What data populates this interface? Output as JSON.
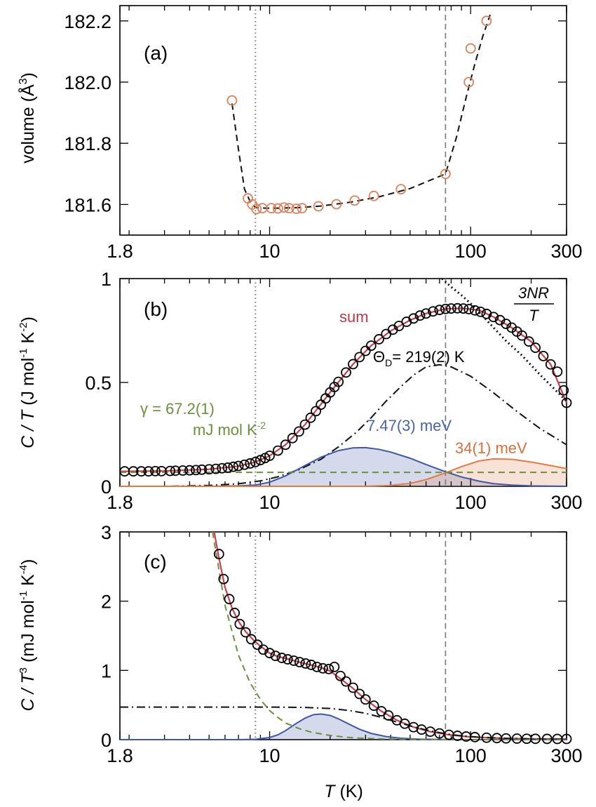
{
  "chart_data": [
    {
      "type": "scatter",
      "panel_label": "(a)",
      "xscale": "log",
      "xlim": [
        1.8,
        300
      ],
      "ylim": [
        181.5,
        182.25
      ],
      "ylabel": "volume (Å³)",
      "ylabel_parts": {
        "pre": "volume (",
        "unit": "Å",
        "exp": "3",
        "post": ")"
      },
      "xticks": [
        {
          "v": 1.8,
          "label": "1.8"
        },
        {
          "v": 10,
          "label": "10"
        },
        {
          "v": 100,
          "label": "100"
        },
        {
          "v": 300,
          "label": "300"
        }
      ],
      "yticks": [
        {
          "v": 181.6,
          "label": "181.6"
        },
        {
          "v": 181.8,
          "label": "181.8"
        },
        {
          "v": 182.0,
          "label": "182.0"
        },
        {
          "v": 182.2,
          "label": "182.2"
        }
      ],
      "vlines": {
        "dotted": 8.5,
        "dashed": 75
      },
      "series": [
        {
          "name": "volume",
          "style": "open-circle",
          "color": "#d9815a",
          "x": [
            6.5,
            7.8,
            8.2,
            8.6,
            9.2,
            10.2,
            11,
            11.8,
            12.5,
            13.6,
            14.5,
            17.5,
            21.5,
            26.5,
            33,
            45,
            75,
            98,
            100,
            120
          ],
          "y": [
            181.94,
            181.62,
            181.6,
            181.585,
            181.588,
            181.588,
            181.587,
            181.59,
            181.588,
            181.586,
            181.588,
            181.594,
            181.601,
            181.613,
            181.628,
            181.65,
            181.7,
            182.0,
            182.11,
            182.2
          ]
        },
        {
          "name": "guide",
          "style": "dashed-line",
          "color": "#111111",
          "x": [
            6.5,
            7.0,
            7.5,
            8.0,
            8.5,
            9.5,
            11,
            14,
            18,
            25,
            35,
            50,
            75,
            85,
            95,
            105,
            115,
            125
          ],
          "y": [
            181.93,
            181.78,
            181.65,
            181.61,
            181.59,
            181.588,
            181.588,
            181.59,
            181.595,
            181.607,
            181.625,
            181.652,
            181.7,
            181.82,
            181.95,
            182.06,
            182.15,
            182.22
          ]
        }
      ]
    },
    {
      "type": "scatter",
      "panel_label": "(b)",
      "xscale": "log",
      "xlim": [
        1.8,
        300
      ],
      "ylim": [
        0,
        1
      ],
      "ylabel": "C / T (J mol⁻¹ K⁻²)",
      "ylabel_parts": {
        "var": "C / T",
        "pre": " (J mol",
        "e1": "-1",
        "mid": " K",
        "e2": "-2",
        "post": ")"
      },
      "xticks": [
        {
          "v": 1.8,
          "label": "1.8"
        },
        {
          "v": 10,
          "label": "10"
        },
        {
          "v": 100,
          "label": "100"
        },
        {
          "v": 300,
          "label": "300"
        }
      ],
      "yticks": [
        {
          "v": 0,
          "label": "0"
        },
        {
          "v": 0.5,
          "label": "0.5"
        },
        {
          "v": 1,
          "label": "1"
        }
      ],
      "vlines": {
        "dotted": 8.5,
        "dashed": 75
      },
      "annotations": {
        "sum": "sum",
        "debye": "Θ_D = 219(2) K",
        "debye_parts": {
          "theta": "Θ",
          "sub": "D",
          "rest": "= 219(2) K"
        },
        "einstein1": "7.47(3) meV",
        "einstein2": "34(1) meV",
        "gamma_line1": "γ = 67.2(1)",
        "gamma_line2": "mJ mol K⁻²",
        "gamma_parts": {
          "l1": "γ = 67.2(1)",
          "l2": "mJ mol K",
          "exp": "-2"
        },
        "classical_num": "3NR",
        "classical_den": "T"
      },
      "series": [
        {
          "name": "data",
          "style": "open-circle",
          "color": "#000000",
          "x": [
            1.9,
            2.1,
            2.3,
            2.5,
            2.7,
            2.9,
            3.2,
            3.4,
            3.7,
            4.0,
            4.3,
            4.6,
            5.0,
            5.4,
            5.8,
            6.2,
            6.6,
            7.0,
            7.5,
            8.0,
            8.5,
            9.0,
            9.5,
            10,
            11,
            12,
            13,
            14,
            15,
            16,
            17,
            18,
            19,
            20,
            21,
            22,
            24,
            26,
            28,
            30,
            32,
            35,
            38,
            41,
            44,
            48,
            52,
            56,
            60,
            65,
            70,
            75,
            80,
            86,
            92,
            98,
            105,
            112,
            120,
            130,
            140,
            150,
            160,
            170,
            180,
            195,
            210,
            230,
            250,
            270,
            290,
            300
          ],
          "y": [
            0.072,
            0.072,
            0.072,
            0.072,
            0.073,
            0.073,
            0.074,
            0.075,
            0.076,
            0.077,
            0.078,
            0.08,
            0.082,
            0.084,
            0.087,
            0.09,
            0.094,
            0.098,
            0.104,
            0.11,
            0.117,
            0.126,
            0.136,
            0.147,
            0.172,
            0.2,
            0.232,
            0.264,
            0.297,
            0.33,
            0.362,
            0.393,
            0.423,
            0.452,
            0.478,
            0.503,
            0.548,
            0.588,
            0.622,
            0.652,
            0.677,
            0.708,
            0.733,
            0.754,
            0.772,
            0.792,
            0.808,
            0.822,
            0.832,
            0.842,
            0.849,
            0.854,
            0.856,
            0.857,
            0.856,
            0.853,
            0.847,
            0.84,
            0.83,
            0.815,
            0.8,
            0.782,
            0.764,
            0.745,
            0.726,
            0.697,
            0.667,
            0.627,
            0.587,
            0.552,
            0.462,
            0.402
          ]
        },
        {
          "name": "sum",
          "style": "line",
          "color": "#c8404f",
          "x": [
            1.8,
            3,
            5,
            7,
            8.5,
            10,
            12,
            15,
            20,
            26,
            32,
            40,
            50,
            60,
            75,
            90,
            110,
            130,
            160,
            200,
            250,
            300
          ],
          "y": [
            0.072,
            0.074,
            0.082,
            0.097,
            0.117,
            0.147,
            0.2,
            0.297,
            0.452,
            0.588,
            0.677,
            0.748,
            0.8,
            0.832,
            0.854,
            0.857,
            0.848,
            0.815,
            0.764,
            0.697,
            0.587,
            0.402
          ]
        },
        {
          "name": "debye",
          "style": "dash-dot",
          "color": "#111111",
          "x": [
            1.8,
            3,
            5,
            7,
            9,
            11,
            14,
            18,
            22,
            27,
            32,
            38,
            45,
            52,
            60,
            70,
            80,
            100,
            130,
            170,
            220,
            300
          ],
          "y": [
            0.0,
            0.0,
            0.004,
            0.012,
            0.026,
            0.046,
            0.08,
            0.13,
            0.19,
            0.26,
            0.33,
            0.41,
            0.48,
            0.535,
            0.575,
            0.585,
            0.575,
            0.53,
            0.45,
            0.36,
            0.28,
            0.2
          ]
        },
        {
          "name": "einstein 7.47 meV",
          "style": "filled",
          "color": "#3d58a8",
          "x": [
            1.8,
            5,
            7,
            8.5,
            10,
            12,
            15,
            18,
            22,
            26,
            30,
            35,
            40,
            50,
            60,
            75,
            90,
            110,
            130,
            160,
            200,
            300
          ],
          "y": [
            0,
            0,
            0.002,
            0.006,
            0.02,
            0.05,
            0.1,
            0.14,
            0.172,
            0.185,
            0.186,
            0.178,
            0.165,
            0.135,
            0.105,
            0.07,
            0.045,
            0.025,
            0.013,
            0.006,
            0.002,
            0
          ]
        },
        {
          "name": "einstein 34 meV",
          "style": "filled",
          "color": "#e07b48",
          "x": [
            1.8,
            30,
            40,
            50,
            60,
            75,
            90,
            110,
            130,
            160,
            200,
            250,
            300
          ],
          "y": [
            0,
            0,
            0.004,
            0.014,
            0.032,
            0.065,
            0.095,
            0.122,
            0.132,
            0.13,
            0.117,
            0.1,
            0.085
          ]
        },
        {
          "name": "gamma",
          "style": "dashed",
          "color": "#6d8f3b",
          "x": [
            1.8,
            300
          ],
          "y": [
            0.0672,
            0.0672
          ]
        },
        {
          "name": "3NR/T",
          "style": "dotted",
          "color": "#111111",
          "x": [
            72,
            80,
            90,
            100,
            120,
            150,
            180,
            220,
            260,
            300
          ],
          "y": [
            1.0,
            0.96,
            0.92,
            0.88,
            0.8,
            0.7,
            0.63,
            0.54,
            0.47,
            0.41
          ]
        }
      ]
    },
    {
      "type": "scatter",
      "panel_label": "(c)",
      "xscale": "log",
      "xlim": [
        1.8,
        300
      ],
      "ylim": [
        0,
        3
      ],
      "xlabel": "T (K)",
      "xlabel_parts": {
        "var": "T",
        "rest": " (K)"
      },
      "ylabel": "C / T³ (mJ mol⁻¹ K⁻⁴)",
      "ylabel_parts": {
        "var": "C / T",
        "e0": "3",
        "pre": " (mJ mol",
        "e1": "-1",
        "mid": " K",
        "e2": "-4",
        "post": ")"
      },
      "xticks": [
        {
          "v": 1.8,
          "label": "1.8"
        },
        {
          "v": 10,
          "label": "10"
        },
        {
          "v": 100,
          "label": "100"
        },
        {
          "v": 300,
          "label": "300"
        }
      ],
      "yticks": [
        {
          "v": 0,
          "label": "0"
        },
        {
          "v": 1,
          "label": "1"
        },
        {
          "v": 2,
          "label": "2"
        },
        {
          "v": 3,
          "label": "3"
        }
      ],
      "vlines": {
        "dotted": 8.5,
        "dashed": 75
      },
      "series": [
        {
          "name": "data",
          "style": "open-circle",
          "color": "#000000",
          "x": [
            5.6,
            5.9,
            6.3,
            6.7,
            7.1,
            7.6,
            8.1,
            8.7,
            9.3,
            10,
            10.7,
            11.5,
            12.3,
            13.2,
            14.1,
            15.1,
            16.1,
            17.2,
            18.4,
            19.7,
            21,
            22.5,
            24,
            26,
            28,
            30,
            33,
            36,
            39,
            43,
            47,
            52,
            57,
            63,
            70,
            78,
            86,
            95,
            105,
            120,
            135,
            150,
            170,
            190,
            210,
            240,
            270,
            300
          ],
          "y": [
            2.68,
            2.32,
            2.03,
            1.83,
            1.67,
            1.55,
            1.45,
            1.37,
            1.3,
            1.25,
            1.21,
            1.18,
            1.16,
            1.14,
            1.12,
            1.1,
            1.08,
            1.05,
            1.03,
            1.02,
            1.05,
            0.92,
            0.84,
            0.75,
            0.66,
            0.58,
            0.49,
            0.41,
            0.35,
            0.28,
            0.23,
            0.18,
            0.145,
            0.115,
            0.09,
            0.07,
            0.055,
            0.045,
            0.036,
            0.028,
            0.022,
            0.018,
            0.015,
            0.013,
            0.012,
            0.011,
            0.01,
            0.01
          ]
        },
        {
          "name": "sum",
          "style": "line",
          "color": "#c8404f",
          "x": [
            5.3,
            5.6,
            6,
            6.5,
            7,
            7.6,
            8.3,
            9,
            10,
            11,
            12.5,
            14,
            16,
            18,
            20,
            23,
            26,
            30,
            36,
            43,
            52,
            63,
            78,
            95,
            120,
            150,
            200,
            300
          ],
          "y": [
            3.0,
            2.62,
            2.2,
            1.9,
            1.71,
            1.56,
            1.44,
            1.35,
            1.25,
            1.2,
            1.16,
            1.12,
            1.08,
            1.04,
            0.99,
            0.86,
            0.74,
            0.58,
            0.41,
            0.28,
            0.18,
            0.115,
            0.07,
            0.045,
            0.028,
            0.018,
            0.012,
            0.01
          ]
        },
        {
          "name": "debye",
          "style": "dash-dot",
          "color": "#111111",
          "x": [
            1.8,
            5,
            10,
            15,
            20,
            25,
            30,
            35,
            40,
            50,
            60,
            75,
            90,
            110,
            150,
            200,
            300
          ],
          "y": [
            0.47,
            0.47,
            0.47,
            0.465,
            0.45,
            0.42,
            0.38,
            0.33,
            0.28,
            0.2,
            0.14,
            0.085,
            0.055,
            0.035,
            0.018,
            0.01,
            0.005
          ]
        },
        {
          "name": "einstein 7.47 meV",
          "style": "filled",
          "color": "#3d58a8",
          "x": [
            1.8,
            7,
            8.5,
            10,
            11,
            12,
            13.5,
            15,
            16.5,
            18,
            20,
            22,
            25,
            28,
            32,
            38,
            45,
            55,
            70,
            90,
            300
          ],
          "y": [
            0,
            0,
            0.005,
            0.03,
            0.07,
            0.13,
            0.23,
            0.31,
            0.36,
            0.37,
            0.35,
            0.3,
            0.22,
            0.15,
            0.09,
            0.045,
            0.02,
            0.008,
            0.002,
            0,
            0
          ]
        },
        {
          "name": "gamma",
          "style": "dashed",
          "color": "#6d8f3b",
          "x": [
            5.2,
            6,
            7,
            8,
            9,
            10,
            11,
            12,
            14,
            16,
            20,
            25,
            30,
            40,
            60,
            100,
            300
          ],
          "y": [
            3.0,
            1.94,
            1.22,
            0.82,
            0.58,
            0.42,
            0.32,
            0.24,
            0.16,
            0.11,
            0.06,
            0.03,
            0.018,
            0.008,
            0.002,
            0,
            0
          ]
        }
      ]
    }
  ]
}
